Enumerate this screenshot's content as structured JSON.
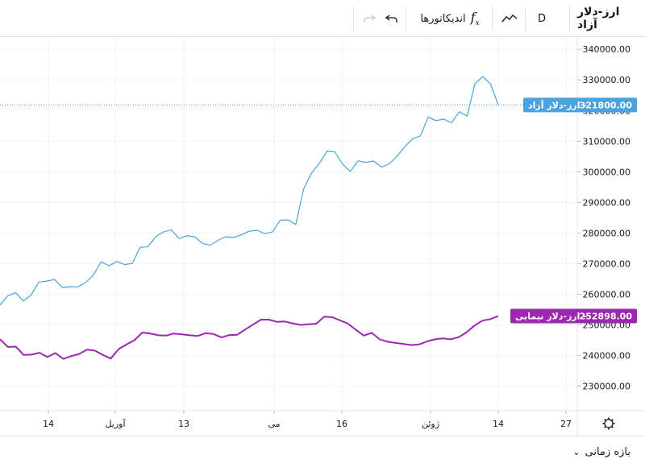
{
  "toolbar": {
    "symbol": "ارز-دلار آزاد",
    "interval": "D",
    "chart_style_icon": "line-chart-icon",
    "indicators_label": "اندیکاتورها",
    "indicators_icon": "function-fx-icon",
    "undo_icon": "undo-icon",
    "redo_icon": "redo-icon"
  },
  "bottom": {
    "range_label": "بازه زمانی",
    "chevron_icon": "chevron-down-icon"
  },
  "axis_settings_icon": "gear-icon",
  "chart_data": {
    "type": "line",
    "x_ticks": [
      "14",
      "آوریل",
      "13",
      "می",
      "16",
      "ژوئن",
      "14",
      "27"
    ],
    "ylim": [
      222000,
      344000
    ],
    "y_ticks": [
      "230000.00",
      "240000.00",
      "250000.00",
      "260000.00",
      "270000.00",
      "280000.00",
      "290000.00",
      "300000.00",
      "310000.00",
      "320000.00",
      "330000.00",
      "340000.00"
    ],
    "series": [
      {
        "name": "ارز-دلار آزاد",
        "color": "#4aa3df",
        "last_label": "321800.00",
        "values": [
          256500,
          259500,
          260500,
          257800,
          259800,
          264000,
          264300,
          264800,
          262200,
          262500,
          262400,
          263800,
          266300,
          270600,
          269300,
          270700,
          269700,
          270100,
          275300,
          275500,
          278800,
          280400,
          281000,
          278200,
          279100,
          278800,
          276600,
          276000,
          277600,
          278800,
          278500,
          279400,
          280600,
          280900,
          279800,
          280400,
          284200,
          284300,
          282800,
          294400,
          299500,
          302700,
          306700,
          306500,
          302500,
          300100,
          303600,
          303100,
          303500,
          301500,
          302600,
          305100,
          308200,
          310800,
          311700,
          317900,
          316700,
          317200,
          316000,
          319600,
          318200,
          328700,
          331100,
          328700,
          321800
        ]
      },
      {
        "name": "ارز-دلار نیمایی",
        "color": "#9c27b0",
        "last_label": "252898.00",
        "values": [
          245300,
          242800,
          242900,
          240200,
          240300,
          240900,
          239500,
          240800,
          238900,
          239800,
          240500,
          241900,
          241600,
          240200,
          239000,
          242100,
          243600,
          245000,
          247500,
          247200,
          246600,
          246500,
          247200,
          246900,
          246600,
          246400,
          247300,
          247000,
          245900,
          246700,
          246800,
          248500,
          250100,
          251700,
          251700,
          251000,
          251100,
          250500,
          250000,
          250200,
          250400,
          252700,
          252500,
          251500,
          250400,
          248400,
          246500,
          247400,
          245300,
          244500,
          244100,
          243800,
          243400,
          243600,
          244600,
          245300,
          245600,
          245300,
          246000,
          247600,
          249800,
          251400,
          251900,
          252898
        ]
      }
    ],
    "grid": true,
    "legend": "right-axis-labels"
  }
}
